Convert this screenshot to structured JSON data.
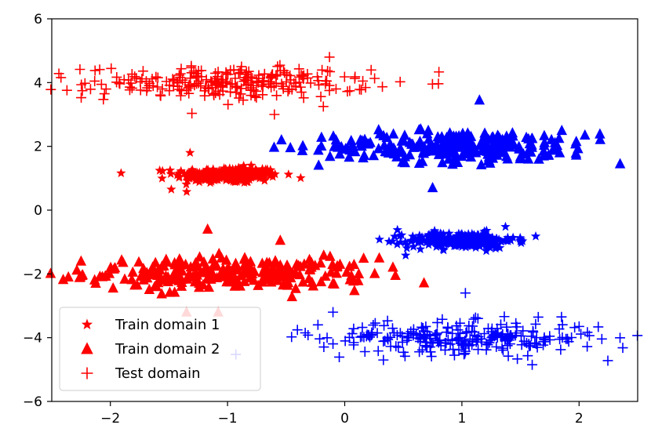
{
  "chart_data": {
    "type": "scatter",
    "title": "",
    "xlabel": "",
    "ylabel": "",
    "xlim": [
      -2.5,
      2.5
    ],
    "ylim": [
      -6,
      6
    ],
    "x_ticks": [
      -2,
      -1,
      0,
      1,
      2
    ],
    "y_ticks": [
      -6,
      -4,
      -2,
      0,
      2,
      4,
      6
    ],
    "x_tick_labels": [
      "−2",
      "−1",
      "0",
      "1",
      "2"
    ],
    "y_tick_labels": [
      "−6",
      "−4",
      "−2",
      "0",
      "2",
      "4",
      "6"
    ],
    "grid": false,
    "legend_position": "lower-left",
    "legend": [
      {
        "label": "Train domain 1",
        "marker": "star",
        "color": "#ff0000"
      },
      {
        "label": "Train domain 2",
        "marker": "triangle",
        "color": "#ff0000"
      },
      {
        "label": "Test domain",
        "marker": "plus",
        "color": "#ff0000"
      }
    ],
    "clusters": [
      {
        "class": "red",
        "domain": "Train domain 1",
        "marker": "star",
        "color": "#ff0000",
        "x_center": -1.0,
        "y_center": 1.1,
        "x_spread": 0.45,
        "y_spread": 0.25,
        "n_points": 250,
        "outliers": [
          [
            -1.32,
            1.8
          ],
          [
            -1.48,
            0.65
          ]
        ]
      },
      {
        "class": "red",
        "domain": "Train domain 2",
        "marker": "triangle",
        "color": "#ff0000",
        "x_center": -1.0,
        "y_center": -2.0,
        "x_spread": 1.2,
        "y_spread": 0.5,
        "n_points": 250,
        "outliers": [
          [
            -2.25,
            -1.6
          ],
          [
            -1.35,
            -3.2
          ],
          [
            -1.08,
            -3.2
          ],
          [
            -1.17,
            -0.6
          ],
          [
            -0.55,
            -0.95
          ],
          [
            0.12,
            -2.0
          ]
        ]
      },
      {
        "class": "red",
        "domain": "Test domain",
        "marker": "plus",
        "color": "#ff0000",
        "x_center": -1.0,
        "y_center": 4.0,
        "x_spread": 1.2,
        "y_spread": 0.5,
        "n_points": 250,
        "outliers": [
          [
            -2.05,
            3.65
          ],
          [
            -0.13,
            4.8
          ],
          [
            -0.6,
            3.0
          ]
        ]
      },
      {
        "class": "blue",
        "domain": "Train domain 1",
        "marker": "star",
        "color": "#0000ff",
        "x_center": 1.0,
        "y_center": -0.95,
        "x_spread": 0.45,
        "y_spread": 0.25,
        "n_points": 250,
        "outliers": [
          [
            0.45,
            -0.62
          ],
          [
            1.63,
            -0.82
          ],
          [
            0.52,
            -1.42
          ]
        ]
      },
      {
        "class": "blue",
        "domain": "Train domain 2",
        "marker": "triangle",
        "color": "#0000ff",
        "x_center": 1.0,
        "y_center": 2.0,
        "x_spread": 1.2,
        "y_spread": 0.5,
        "n_points": 250,
        "outliers": [
          [
            -0.54,
            2.2
          ],
          [
            2.35,
            1.45
          ],
          [
            0.75,
            0.7
          ],
          [
            1.15,
            3.45
          ],
          [
            2.05,
            2.35
          ]
        ]
      },
      {
        "class": "blue",
        "domain": "Test domain",
        "marker": "plus",
        "color": "#0000ff",
        "x_center": 1.0,
        "y_center": -4.0,
        "x_spread": 1.2,
        "y_spread": 0.5,
        "n_points": 250,
        "outliers": [
          [
            -0.1,
            -3.2
          ],
          [
            1.03,
            -2.6
          ],
          [
            1.85,
            -3.35
          ],
          [
            0.33,
            -4.7
          ],
          [
            1.6,
            -4.85
          ]
        ]
      }
    ]
  }
}
